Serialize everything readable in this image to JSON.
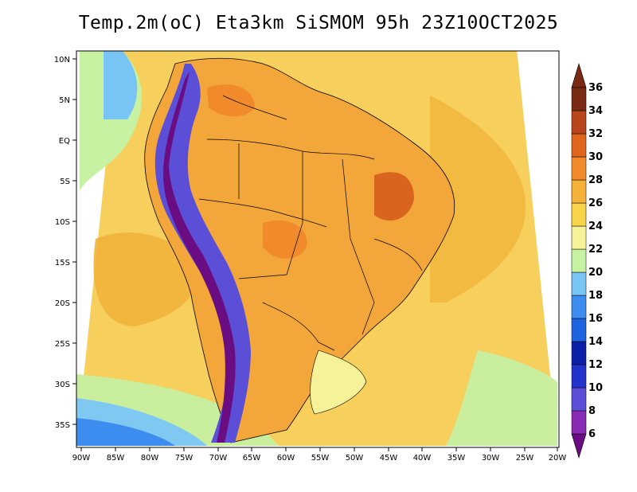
{
  "title": "Temp.2m(oC) Eta3km SiSMOM 95h 23Z10OCT2025",
  "lat_labels": [
    "10N",
    "5N",
    "EQ",
    "5S",
    "10S",
    "15S",
    "20S",
    "25S",
    "30S",
    "35S"
  ],
  "lon_labels": [
    "90W",
    "85W",
    "80W",
    "75W",
    "70W",
    "65W",
    "60W",
    "55W",
    "50W",
    "45W",
    "40W",
    "35W",
    "30W",
    "25W",
    "20W"
  ],
  "colorbar": {
    "labels": [
      "6",
      "8",
      "10",
      "12",
      "14",
      "16",
      "18",
      "20",
      "22",
      "24",
      "26",
      "28",
      "30",
      "32",
      "34",
      "36"
    ],
    "colors": [
      "#6a0d83",
      "#8b2bb5",
      "#5a4fd6",
      "#2233cc",
      "#0b1fa8",
      "#1e63e0",
      "#3d8df0",
      "#78c4f5",
      "#c6f2a2",
      "#f6f29a",
      "#f8d44a",
      "#f6b13a",
      "#f08a2a",
      "#e0661d",
      "#b8451c",
      "#7a2a12"
    ]
  }
}
